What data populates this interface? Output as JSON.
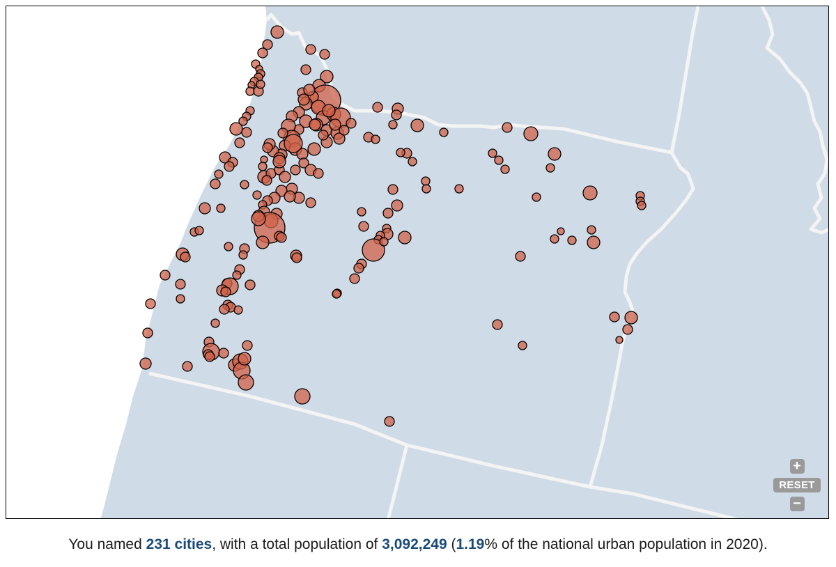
{
  "map": {
    "colors": {
      "land": "#cfdbe6",
      "ocean": "#ffffff",
      "border": "#f4f4f4",
      "city_fill": "#d0634a",
      "city_stroke": "#000000"
    },
    "controls": {
      "zoom_in_icon": "plus-icon",
      "zoom_in_label": "+",
      "reset_label": "RESET",
      "zoom_out_icon": "minus-icon",
      "zoom_out_label": "−"
    }
  },
  "summary": {
    "prefix": "You named ",
    "cities_count": "231 cities",
    "mid1": ", with a total population of ",
    "population": "3,092,249",
    "mid2": " (",
    "percent": "1.19",
    "suffix": "% of the national urban population in 2020)."
  }
}
